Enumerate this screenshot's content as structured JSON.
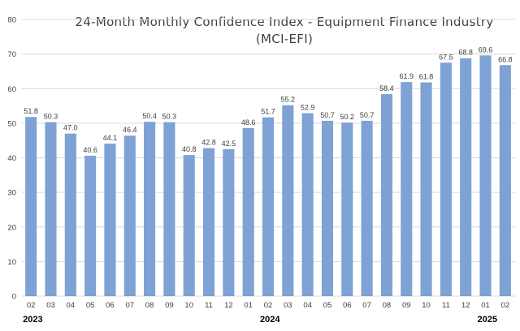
{
  "chart_data": {
    "type": "bar",
    "title": [
      "24-Month Monthly Confidence Index - Equipment Finance Industry",
      "(MCI-EFI)"
    ],
    "categories": [
      "02",
      "03",
      "04",
      "05",
      "06",
      "07",
      "08",
      "09",
      "10",
      "11",
      "12",
      "01",
      "02",
      "03",
      "04",
      "05",
      "06",
      "07",
      "08",
      "09",
      "10",
      "11",
      "12",
      "01",
      "02"
    ],
    "values": [
      51.8,
      50.3,
      47.0,
      40.6,
      44.1,
      46.4,
      50.4,
      50.3,
      40.8,
      42.8,
      42.5,
      48.6,
      51.7,
      55.2,
      52.9,
      50.7,
      50.2,
      50.7,
      58.4,
      61.9,
      61.8,
      67.5,
      68.8,
      69.6,
      66.8
    ],
    "data_labels": [
      "51.8",
      "50.3",
      "47.0",
      "40.6",
      "44.1",
      "46.4",
      "50.4",
      "50.3",
      "40.8",
      "42.8",
      "42.5",
      "48.6",
      "51.7",
      "55.2",
      "52.9",
      "50.7",
      "50.2",
      "50.7",
      "58.4",
      "61.9",
      "61.8",
      "67.5",
      "68.8",
      "69.6",
      "66.8"
    ],
    "year_labels": [
      {
        "text": "2023",
        "category_index": 0
      },
      {
        "text": "2024",
        "category_index": 12
      },
      {
        "text": "2025",
        "category_index": 23
      }
    ],
    "ylim": [
      0,
      80
    ],
    "yticks": [
      0,
      10,
      20,
      30,
      40,
      50,
      60,
      70,
      80
    ],
    "grid": true,
    "bar_color": "#7ea2d3",
    "grid_color": "#d9d9d9",
    "label_color": "#404040",
    "xlabel": "",
    "ylabel": ""
  }
}
